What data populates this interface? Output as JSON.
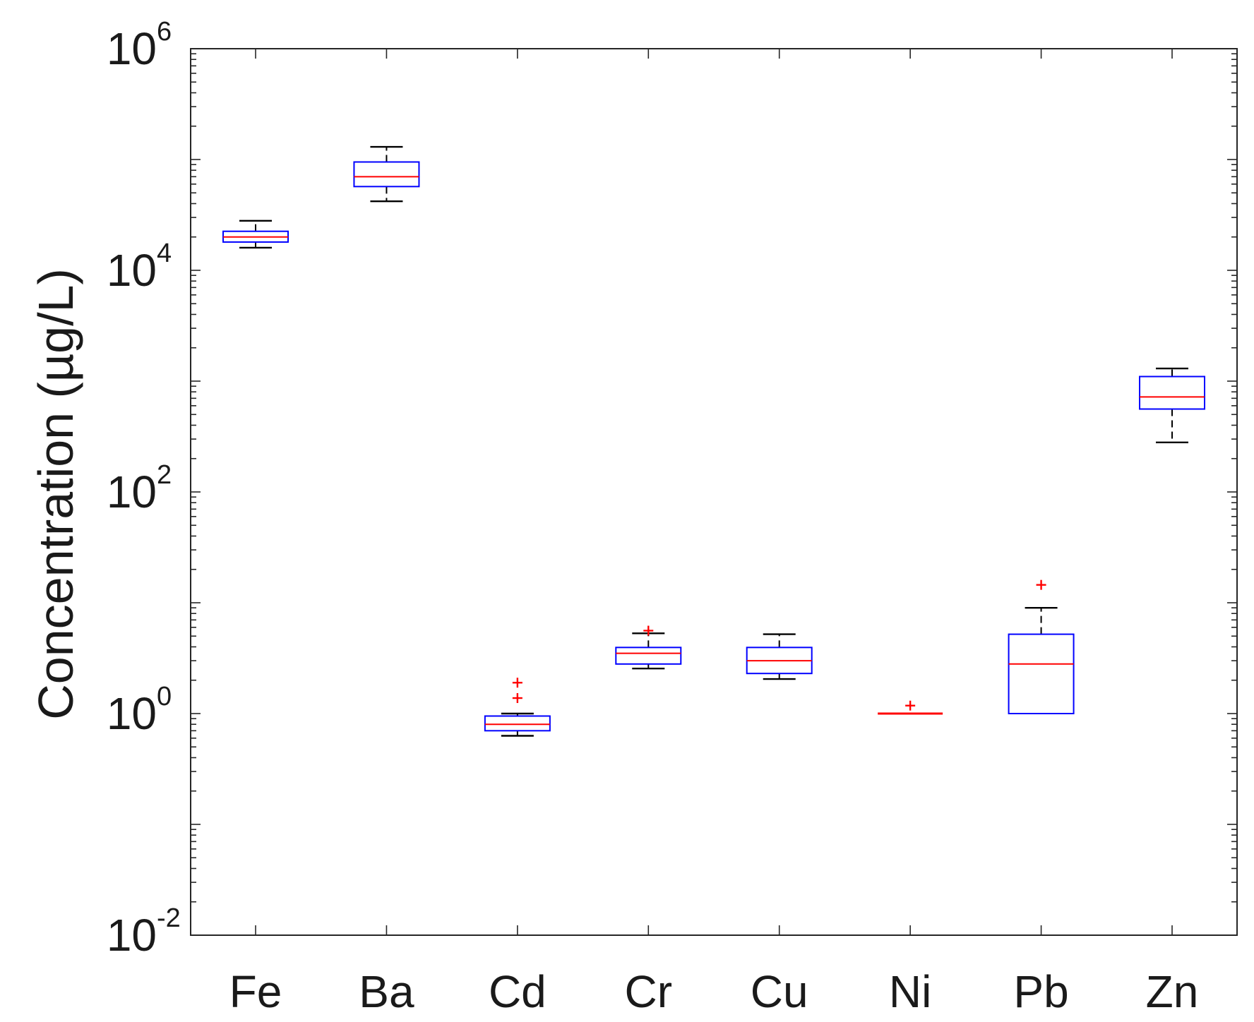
{
  "chart_data": {
    "type": "box",
    "ylabel": "Concentration (µg/L)",
    "yscale": "log",
    "ylim": [
      0.01,
      1000000
    ],
    "yticks": [
      {
        "value": 1000000,
        "base": "10",
        "exp": "6"
      },
      {
        "value": 10000,
        "base": "10",
        "exp": "4"
      },
      {
        "value": 100,
        "base": "10",
        "exp": "2"
      },
      {
        "value": 1,
        "base": "10",
        "exp": "0"
      },
      {
        "value": 0.01,
        "base": "10",
        "exp": "-2"
      }
    ],
    "categories": [
      "Fe",
      "Ba",
      "Cd",
      "Cr",
      "Cu",
      "Ni",
      "Pb",
      "Zn"
    ],
    "boxes": [
      {
        "name": "Fe",
        "whisker_low": 16000,
        "q1": 18000,
        "median": 20000,
        "q3": 22500,
        "whisker_high": 28000,
        "outliers": []
      },
      {
        "name": "Ba",
        "whisker_low": 42000,
        "q1": 57000,
        "median": 70000,
        "q3": 95000,
        "whisker_high": 130000,
        "outliers": []
      },
      {
        "name": "Cd",
        "whisker_low": 0.63,
        "q1": 0.7,
        "median": 0.8,
        "q3": 0.95,
        "whisker_high": 1.0,
        "outliers": [
          1.38,
          1.9
        ]
      },
      {
        "name": "Cr",
        "whisker_low": 2.55,
        "q1": 2.8,
        "median": 3.5,
        "q3": 3.95,
        "whisker_high": 5.3,
        "outliers": [
          5.6
        ]
      },
      {
        "name": "Cu",
        "whisker_low": 2.05,
        "q1": 2.3,
        "median": 3.0,
        "q3": 3.95,
        "whisker_high": 5.2,
        "outliers": []
      },
      {
        "name": "Ni",
        "whisker_low": 1.0,
        "q1": 1.0,
        "median": 1.0,
        "q3": 1.0,
        "whisker_high": 1.0,
        "outliers": [
          1.18
        ]
      },
      {
        "name": "Pb",
        "whisker_low": 1.0,
        "q1": 1.0,
        "median": 2.8,
        "q3": 5.2,
        "whisker_high": 9.0,
        "outliers": [
          14.5
        ]
      },
      {
        "name": "Zn",
        "whisker_low": 280,
        "q1": 560,
        "median": 720,
        "q3": 1100,
        "whisker_high": 1300,
        "outliers": []
      }
    ],
    "colors": {
      "box": "#0000ff",
      "median": "#ff0000",
      "whisker": "#000000",
      "outlier": "#ff0000",
      "axis": "#262626"
    },
    "grid": false,
    "legend": "none"
  }
}
